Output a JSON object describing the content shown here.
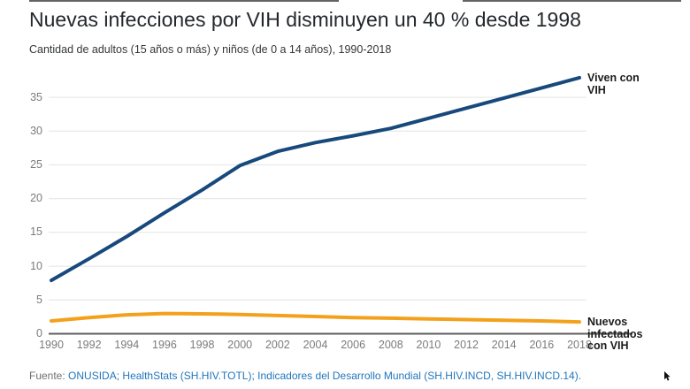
{
  "page": {
    "title": "Nuevas infecciones por VIH disminuyen un 40 % desde 1998",
    "subtitle": "Cantidad de adultos (15 años o más) y niños (de 0 a 14 años), 1990-2018"
  },
  "chart_data": {
    "type": "line",
    "title": "Nuevas infecciones por VIH disminuyen un 40 % desde 1998",
    "subtitle": "Cantidad de adultos (15 años o más) y niños (de 0 a 14 años), 1990-2018",
    "x": [
      1990,
      1992,
      1994,
      1996,
      1998,
      2000,
      2002,
      2004,
      2006,
      2008,
      2010,
      2012,
      2014,
      2016,
      2018
    ],
    "xlabel": "",
    "ylabel": "",
    "ylim": [
      0,
      38.5
    ],
    "yticks": [
      0,
      5,
      10,
      15,
      20,
      25,
      30,
      35
    ],
    "grid": "horizontal",
    "legend_position": "right-annotations",
    "series": [
      {
        "name": "Viven con VIH",
        "color": "#17497c",
        "values": [
          7.9,
          11.1,
          14.4,
          17.9,
          21.3,
          24.9,
          27.0,
          28.3,
          29.3,
          30.4,
          31.9,
          33.4,
          34.9,
          36.4,
          37.9
        ]
      },
      {
        "name": "Nuevos infectados con VIH",
        "color": "#f3a11d",
        "values": [
          1.9,
          2.4,
          2.8,
          3.0,
          2.95,
          2.85,
          2.7,
          2.55,
          2.4,
          2.3,
          2.2,
          2.1,
          2.0,
          1.9,
          1.75
        ]
      }
    ],
    "colors": {
      "gridline": "#e4e4e4",
      "axis_line": "#5e5e5e",
      "tick_text": "#7b7b7b"
    }
  },
  "footer": {
    "prefix": "Fuente:",
    "links": [
      "ONUSIDA;",
      "HealthStats (SH.HIV.TOTL);",
      "Indicadores del Desarrollo Mundial (SH.HIV.INCD, SH.HIV.INCD.14)."
    ],
    "link_color": "#2176bd"
  }
}
